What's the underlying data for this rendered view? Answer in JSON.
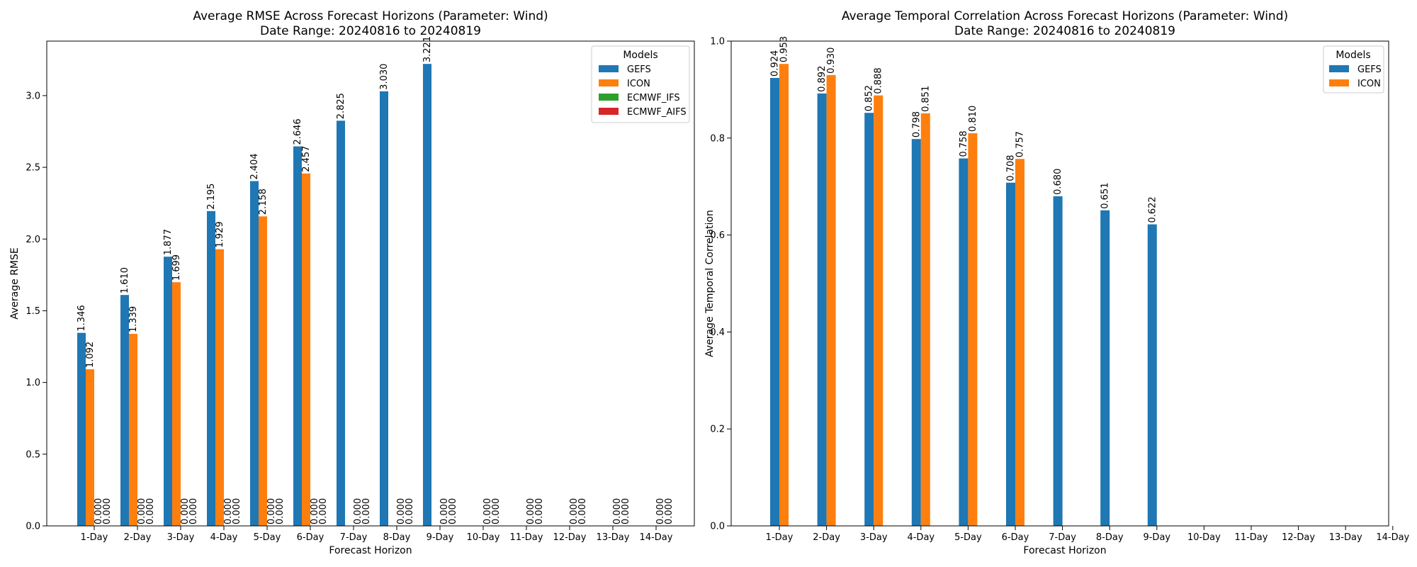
{
  "colors": {
    "GEFS": "#1f77b4",
    "ICON": "#ff7f0e",
    "ECMWF_IFS": "#2ca02c",
    "ECMWF_AIFS": "#d62728"
  },
  "chart_data": [
    {
      "type": "bar",
      "title_line1": "Average RMSE Across Forecast Horizons (Parameter: Wind)",
      "title_line2": "Date Range: 20240816 to 20240819",
      "xlabel": "Forecast Horizon",
      "ylabel": "Average RMSE",
      "ylim": [
        0,
        3.38
      ],
      "yticks": [
        "0.0",
        "0.5",
        "1.0",
        "1.5",
        "2.0",
        "2.5",
        "3.0"
      ],
      "categories": [
        "1-Day",
        "2-Day",
        "3-Day",
        "4-Day",
        "5-Day",
        "6-Day",
        "7-Day",
        "8-Day",
        "9-Day",
        "10-Day",
        "11-Day",
        "12-Day",
        "13-Day",
        "14-Day"
      ],
      "legend_title": "Models",
      "legend_position": "top-right",
      "series": [
        {
          "name": "GEFS",
          "values": [
            1.346,
            1.61,
            1.877,
            2.195,
            2.404,
            2.646,
            2.825,
            3.03,
            3.221,
            null,
            null,
            null,
            null,
            null
          ],
          "labels": [
            "1.346",
            "1.610",
            "1.877",
            "2.195",
            "2.404",
            "2.646",
            "2.825",
            "3.030",
            "3.221",
            "",
            "",
            "",
            "",
            ""
          ]
        },
        {
          "name": "ICON",
          "values": [
            1.092,
            1.339,
            1.699,
            1.929,
            2.158,
            2.457,
            null,
            null,
            null,
            null,
            null,
            null,
            null,
            null
          ],
          "labels": [
            "1.092",
            "1.339",
            "1.699",
            "1.929",
            "2.158",
            "2.457",
            "",
            "",
            "",
            "",
            "",
            "",
            "",
            ""
          ]
        },
        {
          "name": "ECMWF_IFS",
          "values": [
            0,
            0,
            0,
            0,
            0,
            0,
            0,
            0,
            0,
            0,
            0,
            0,
            0,
            0
          ],
          "labels": [
            "0.000",
            "0.000",
            "0.000",
            "0.000",
            "0.000",
            "0.000",
            "0.000",
            "0.000",
            "0.000",
            "0.000",
            "0.000",
            "0.000",
            "0.000",
            "0.000"
          ]
        },
        {
          "name": "ECMWF_AIFS",
          "values": [
            0,
            0,
            0,
            0,
            0,
            0,
            0,
            0,
            0,
            0,
            0,
            0,
            0,
            0
          ],
          "labels": [
            "0.000",
            "0.000",
            "0.000",
            "0.000",
            "0.000",
            "0.000",
            "0.000",
            "0.000",
            "0.000",
            "0.000",
            "0.000",
            "0.000",
            "0.000",
            "0.000"
          ]
        }
      ],
      "grid": false
    },
    {
      "type": "bar",
      "title_line1": "Average Temporal Correlation Across Forecast Horizons (Parameter: Wind)",
      "title_line2": "Date Range: 20240816 to 20240819",
      "xlabel": "Forecast Horizon",
      "ylabel": "Average Temporal Correlation",
      "ylim": [
        0,
        1.0
      ],
      "yticks": [
        "0.0",
        "0.2",
        "0.4",
        "0.6",
        "0.8",
        "1.0"
      ],
      "categories": [
        "1-Day",
        "2-Day",
        "3-Day",
        "4-Day",
        "5-Day",
        "6-Day",
        "7-Day",
        "8-Day",
        "9-Day",
        "10-Day",
        "11-Day",
        "12-Day",
        "13-Day",
        "14-Day"
      ],
      "legend_title": "Models",
      "legend_position": "top-right",
      "series": [
        {
          "name": "GEFS",
          "values": [
            0.924,
            0.892,
            0.852,
            0.798,
            0.758,
            0.708,
            0.68,
            0.651,
            0.622,
            null,
            null,
            null,
            null,
            null
          ],
          "labels": [
            "0.924",
            "0.892",
            "0.852",
            "0.798",
            "0.758",
            "0.708",
            "0.680",
            "0.651",
            "0.622",
            "",
            "",
            "",
            "",
            ""
          ]
        },
        {
          "name": "ICON",
          "values": [
            0.953,
            0.93,
            0.888,
            0.851,
            0.81,
            0.757,
            null,
            null,
            null,
            null,
            null,
            null,
            null,
            null
          ],
          "labels": [
            "0.953",
            "0.930",
            "0.888",
            "0.851",
            "0.810",
            "0.757",
            "",
            "",
            "",
            "",
            "",
            "",
            "",
            ""
          ]
        }
      ],
      "grid": false
    }
  ]
}
